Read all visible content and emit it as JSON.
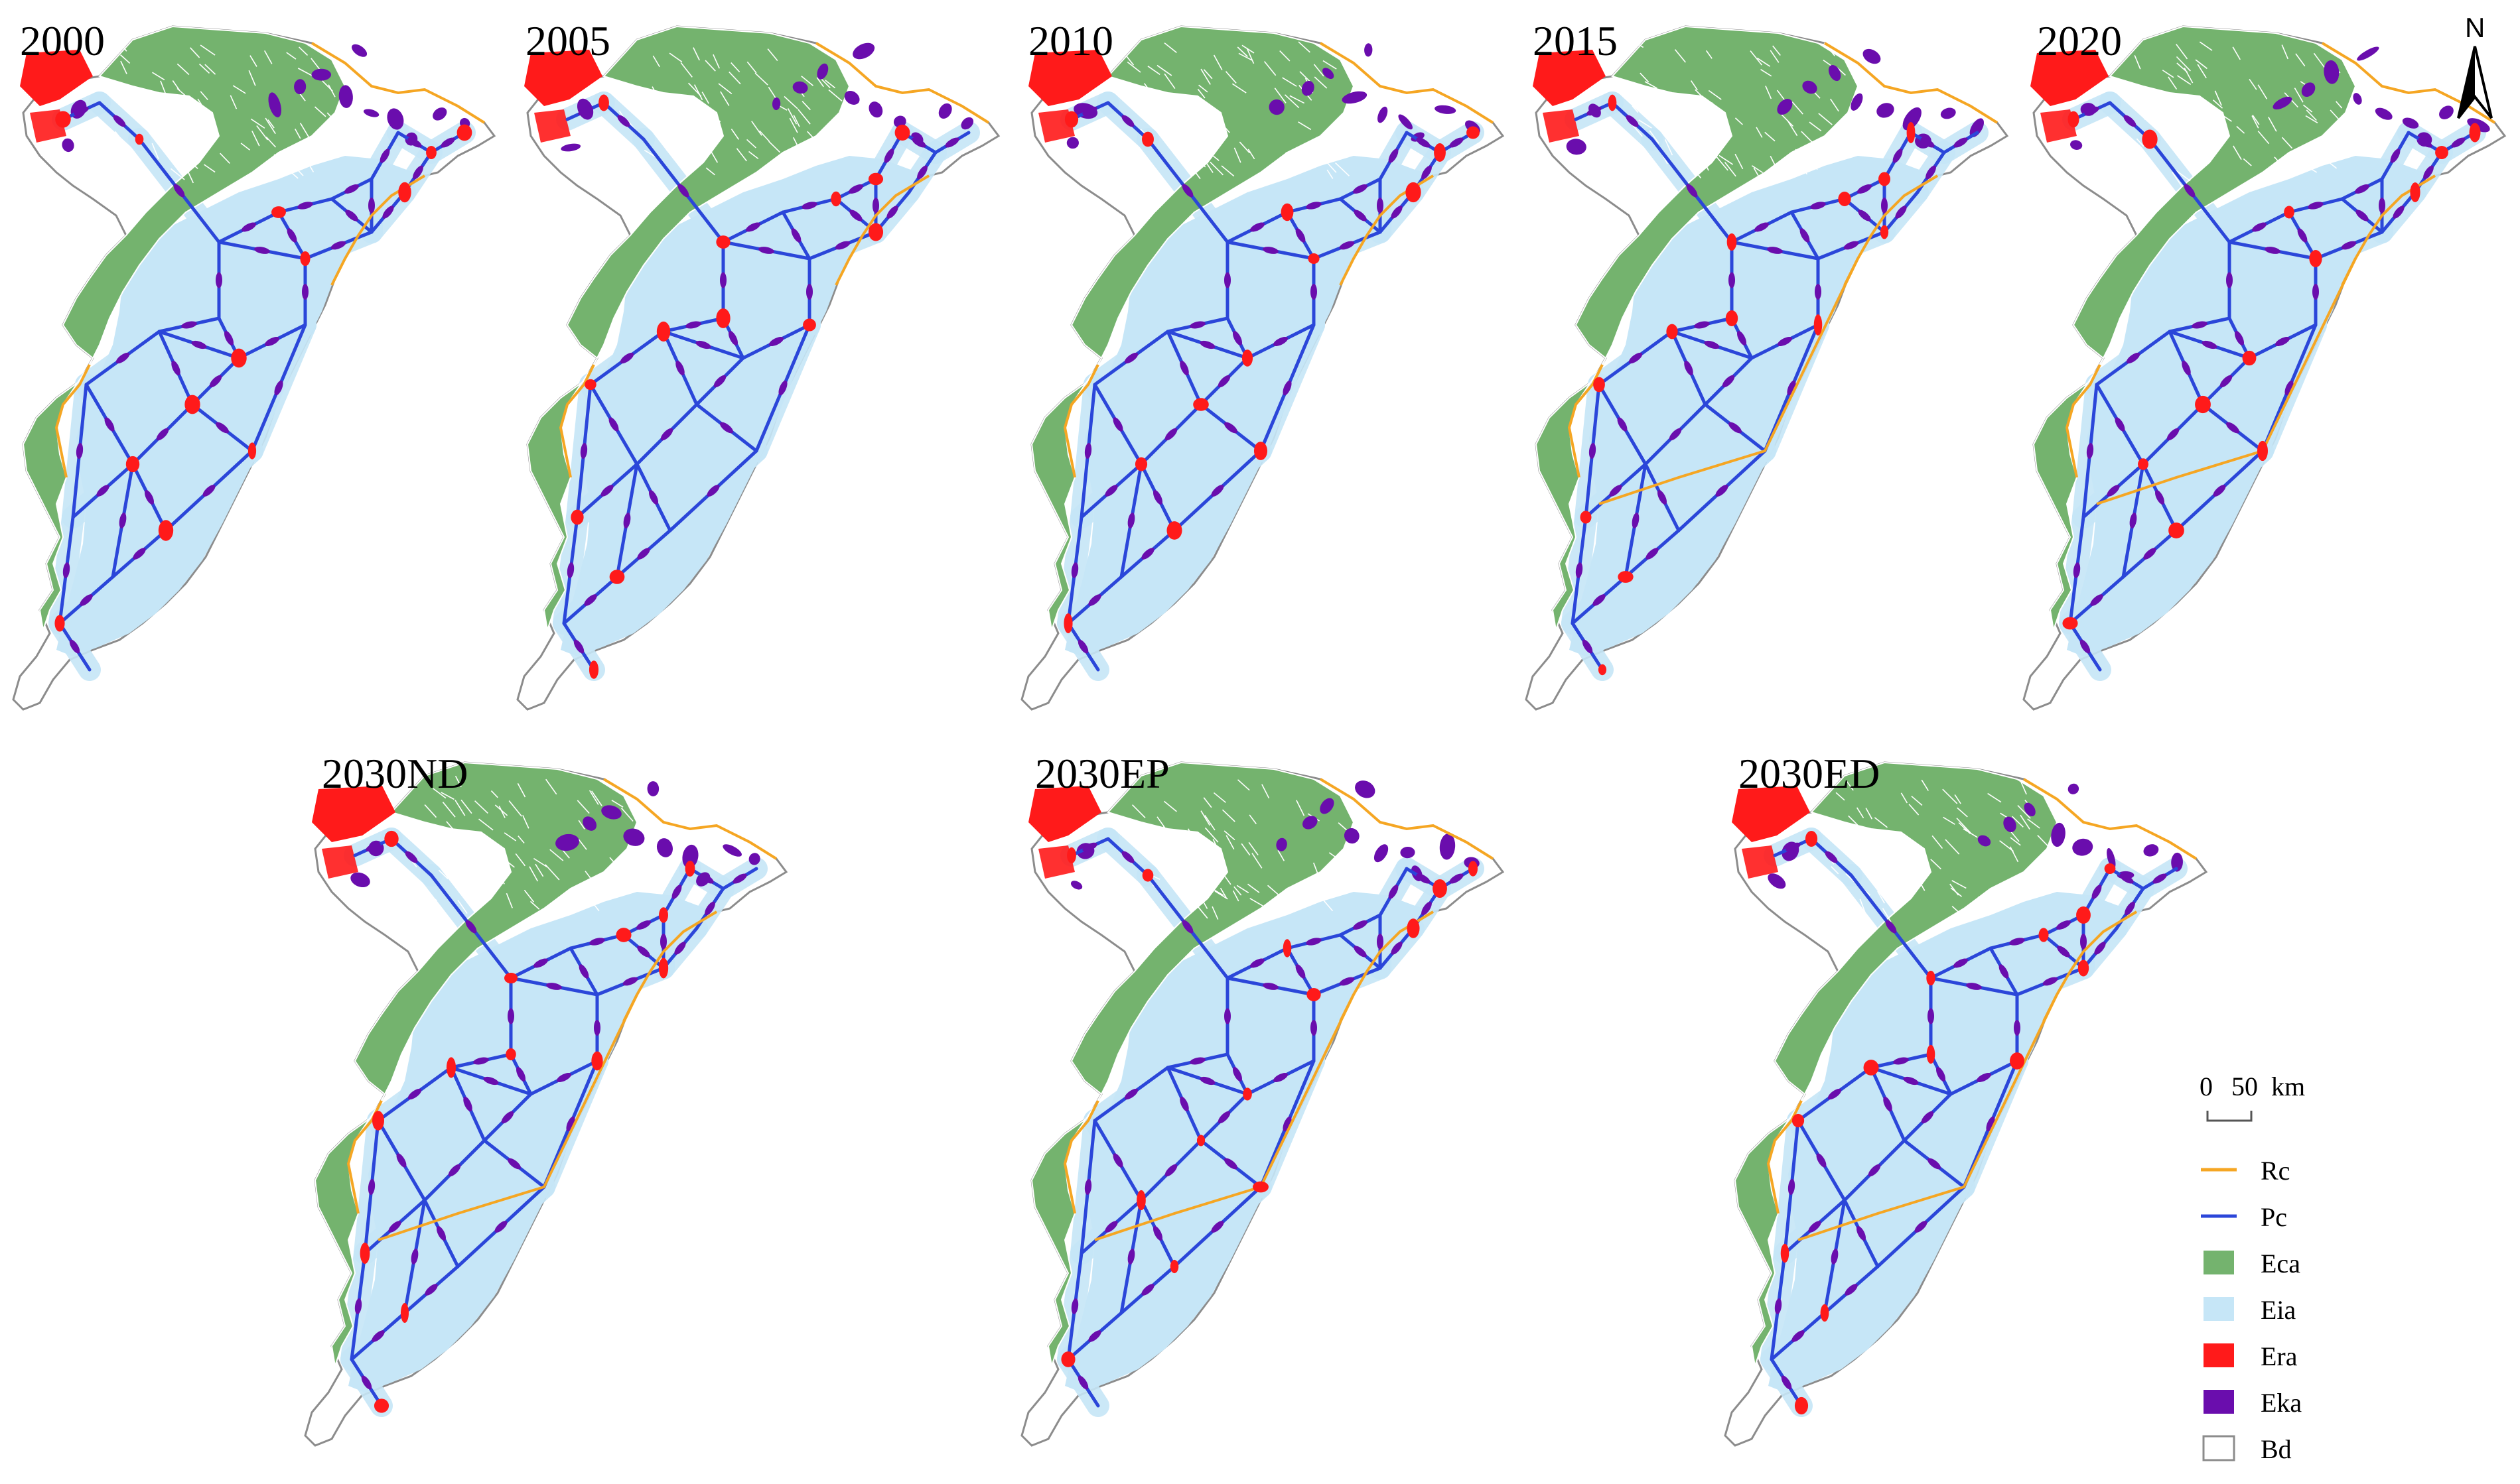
{
  "panels": [
    {
      "label": "2000"
    },
    {
      "label": "2005"
    },
    {
      "label": "2010"
    },
    {
      "label": "2015"
    },
    {
      "label": "2020"
    },
    {
      "label": "2030ND"
    },
    {
      "label": "2030EP"
    },
    {
      "label": "2030ED"
    }
  ],
  "north_arrow": {
    "letter": "N"
  },
  "scale_bar": {
    "zero": "0",
    "value": "50",
    "unit": "km"
  },
  "legend": [
    {
      "key": "rc",
      "label": "Rc",
      "symbol": "line",
      "color": "#f5a623"
    },
    {
      "key": "pc",
      "label": "Pc",
      "symbol": "line",
      "color": "#2b46d9"
    },
    {
      "key": "eca",
      "label": "Eca",
      "symbol": "patch",
      "color": "#74b36e"
    },
    {
      "key": "eia",
      "label": "Eia",
      "symbol": "patch",
      "color": "#c6e6f7"
    },
    {
      "key": "era",
      "label": "Era",
      "symbol": "patch",
      "color": "#ff1a1a"
    },
    {
      "key": "eka",
      "label": "Eka",
      "symbol": "patch",
      "color": "#6a0dad"
    },
    {
      "key": "bd",
      "label": "Bd",
      "symbol": "outline",
      "color": "#8c8c8c"
    }
  ]
}
